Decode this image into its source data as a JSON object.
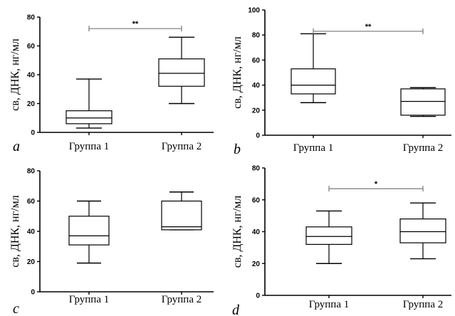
{
  "chart_data": [
    {
      "type": "boxplot",
      "panel_label": "a",
      "ylabel": "св, ДНК, нг/мл",
      "ylim": [
        0,
        80
      ],
      "yticks": [
        0,
        20,
        40,
        60,
        80
      ],
      "categories": [
        "Группа 1",
        "Группа 2"
      ],
      "series": [
        {
          "category": "Группа 1",
          "min": 3,
          "q1": 6,
          "median": 10,
          "q3": 15,
          "max": 37
        },
        {
          "category": "Группа 2",
          "min": 20,
          "q1": 32,
          "median": 41,
          "q3": 51,
          "max": 66
        }
      ],
      "significance": {
        "label": "**",
        "y": 72
      }
    },
    {
      "type": "boxplot",
      "panel_label": "b",
      "ylabel": "св, ДНК, нг/мл",
      "ylim": [
        0,
        100
      ],
      "yticks": [
        0,
        20,
        40,
        60,
        80,
        100
      ],
      "categories": [
        "Группа 1",
        "Группа 2"
      ],
      "series": [
        {
          "category": "Группа 1",
          "min": 26,
          "q1": 33,
          "median": 40,
          "q3": 53,
          "max": 81
        },
        {
          "category": "Группа 2",
          "min": 15,
          "q1": 16,
          "median": 27,
          "q3": 37,
          "max": 38
        }
      ],
      "significance": {
        "label": "**",
        "y": 83
      }
    },
    {
      "type": "boxplot",
      "panel_label": "c",
      "ylabel": "св, ДНК, нг/мл",
      "ylim": [
        0,
        80
      ],
      "yticks": [
        0,
        20,
        40,
        60,
        80
      ],
      "categories": [
        "Группа 1",
        "Группа 2"
      ],
      "series": [
        {
          "category": "Группа 1",
          "min": 19,
          "q1": 31,
          "median": 37,
          "q3": 50,
          "max": 60
        },
        {
          "category": "Группа 2",
          "min": 41,
          "q1": 41,
          "median": 43,
          "q3": 60,
          "max": 66
        }
      ],
      "significance": null
    },
    {
      "type": "boxplot",
      "panel_label": "d",
      "ylabel": "св, ДНК, нг/мл",
      "ylim": [
        0,
        80
      ],
      "yticks": [
        0,
        20,
        40,
        60,
        80
      ],
      "categories": [
        "Группа 1",
        "Группа 2"
      ],
      "series": [
        {
          "category": "Группа 1",
          "min": 20,
          "q1": 32,
          "median": 37,
          "q3": 43,
          "max": 53
        },
        {
          "category": "Группа 2",
          "min": 23,
          "q1": 33,
          "median": 40,
          "q3": 48,
          "max": 58
        }
      ],
      "significance": {
        "label": "*",
        "y": 67
      }
    }
  ],
  "colors": {
    "line": "#000000",
    "box_fill": "#ffffff",
    "significance_bar": "#777777"
  }
}
